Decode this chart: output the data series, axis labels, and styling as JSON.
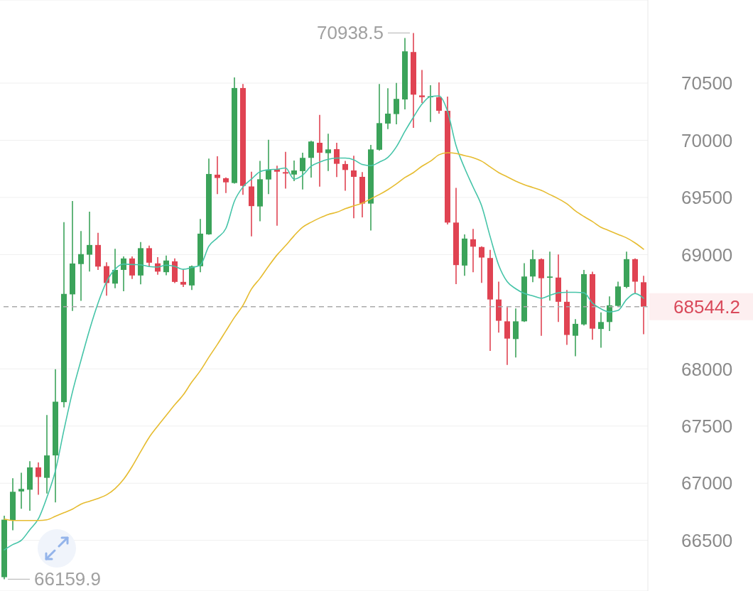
{
  "chart_data": {
    "type": "candlestick",
    "categories": [
      null,
      null,
      null,
      null,
      null,
      null,
      null,
      null,
      null,
      null,
      null,
      null,
      null,
      null,
      null,
      null,
      null,
      null,
      null,
      null,
      null,
      null,
      null,
      null,
      null,
      null,
      null,
      null,
      null,
      null,
      null,
      null,
      null,
      null,
      null,
      null,
      null,
      null,
      null,
      null,
      null,
      null,
      null,
      null,
      null,
      null,
      null,
      null,
      null,
      null,
      null,
      null,
      null,
      null,
      null,
      null,
      null,
      null,
      null,
      null,
      null,
      null,
      null,
      null,
      null,
      null,
      null,
      null,
      null,
      null,
      null,
      null,
      null,
      null,
      null,
      null
    ],
    "ohlc": [
      [
        66178,
        66715,
        66159.9,
        66681
      ],
      [
        66677,
        67043,
        66588,
        66925
      ],
      [
        66928,
        67092,
        66777,
        66950
      ],
      [
        66943,
        67193,
        66759,
        67138
      ],
      [
        67138,
        67181,
        66899,
        67054
      ],
      [
        67047,
        67597,
        66910,
        67243
      ],
      [
        67243,
        67997,
        66832,
        67713
      ],
      [
        67709,
        69283,
        67664,
        68656
      ],
      [
        68652,
        69468,
        68507,
        68922
      ],
      [
        68917,
        69206,
        68596,
        69004
      ],
      [
        68999,
        69376,
        68851,
        69084
      ],
      [
        69084,
        69190,
        68866,
        68895
      ],
      [
        68899,
        68933,
        68640,
        68751
      ],
      [
        68746,
        69050,
        68705,
        68866
      ],
      [
        68866,
        68984,
        68680,
        68966
      ],
      [
        68966,
        68984,
        68786,
        68817
      ],
      [
        68817,
        69110,
        68740,
        69056
      ],
      [
        69056,
        69078,
        68895,
        68929
      ],
      [
        68923,
        68978,
        68823,
        68851
      ],
      [
        68846,
        68991,
        68819,
        68948
      ],
      [
        68941,
        68966,
        68751,
        68761
      ],
      [
        68761,
        68870,
        68717,
        68737
      ],
      [
        68730,
        68905,
        68690,
        68898
      ],
      [
        68898,
        69312,
        68846,
        69183
      ],
      [
        69177,
        69840,
        69173,
        69705
      ],
      [
        69699,
        69860,
        69529,
        69670
      ],
      [
        69668,
        69675,
        69539,
        69632
      ],
      [
        69626,
        70550,
        69620,
        70457
      ],
      [
        70457,
        70492,
        69523,
        69601
      ],
      [
        69596,
        69725,
        69160,
        69424
      ],
      [
        69421,
        69819,
        69291,
        69659
      ],
      [
        69657,
        70005,
        69529,
        69742
      ],
      [
        69746,
        69777,
        69253,
        69725
      ],
      [
        69721,
        69898,
        69577,
        69709
      ],
      [
        69700,
        69823,
        69643,
        69736
      ],
      [
        69730,
        69891,
        69569,
        69846
      ],
      [
        69846,
        69995,
        69674,
        69989
      ],
      [
        69978,
        70222,
        69594,
        69891
      ],
      [
        69887,
        70057,
        69731,
        69920
      ],
      [
        69922,
        69978,
        69678,
        69794
      ],
      [
        69792,
        69819,
        69559,
        69740
      ],
      [
        69736,
        69864,
        69317,
        69680
      ],
      [
        69680,
        69721,
        69326,
        69446
      ],
      [
        69446,
        69960,
        69211,
        69920
      ],
      [
        69917,
        70492,
        69910,
        70150
      ],
      [
        70146,
        70455,
        70098,
        70233
      ],
      [
        70229,
        70502,
        70140,
        70362
      ],
      [
        70357,
        70895,
        70270,
        70778
      ],
      [
        70772,
        70938.5,
        70109,
        70399
      ],
      [
        70392,
        70615,
        70326,
        70377
      ],
      [
        70377,
        70481,
        70160,
        70385
      ],
      [
        70377,
        70506,
        70233,
        70258
      ],
      [
        70258,
        70382,
        69264,
        69280
      ],
      [
        69280,
        69584,
        68742,
        68908
      ],
      [
        68904,
        69177,
        68815,
        69140
      ],
      [
        69134,
        69225,
        68846,
        69069
      ],
      [
        69066,
        69072,
        68752,
        68974
      ],
      [
        68970,
        69042,
        68158,
        68607
      ],
      [
        68607,
        68763,
        68318,
        68421
      ],
      [
        68416,
        68541,
        68034,
        68265
      ],
      [
        68261,
        68529,
        68100,
        68416
      ],
      [
        68416,
        68924,
        68410,
        68808
      ],
      [
        68808,
        69042,
        68758,
        68960
      ],
      [
        68960,
        68966,
        68290,
        68793
      ],
      [
        68797,
        69026,
        68597,
        68808
      ],
      [
        68799,
        69001,
        68410,
        68587
      ],
      [
        68587,
        68690,
        68210,
        68297
      ],
      [
        68290,
        68435,
        68110,
        68394
      ],
      [
        68389,
        68866,
        68379,
        68829
      ],
      [
        68829,
        68850,
        68255,
        68352
      ],
      [
        68349,
        68494,
        68186,
        68410
      ],
      [
        68410,
        68634,
        68332,
        68556
      ],
      [
        68551,
        68763,
        68545,
        68721
      ],
      [
        68717,
        69026,
        68705,
        68960
      ],
      [
        68960,
        68966,
        68659,
        68763
      ],
      [
        68758,
        68814,
        68303,
        68544.2
      ]
    ],
    "colors": [
      "#3ba35a",
      "#3ba35a",
      "#3ba35a",
      "#3ba35a",
      "#e04352",
      "#3ba35a",
      "#3ba35a",
      "#3ba35a",
      "#3ba35a",
      "#3ba35a",
      "#3ba35a",
      "#e04352",
      "#e04352",
      "#3ba35a",
      "#3ba35a",
      "#e04352",
      "#3ba35a",
      "#e04352",
      "#e04352",
      "#3ba35a",
      "#e04352",
      "#e04352",
      "#3ba35a",
      "#3ba35a",
      "#3ba35a",
      "#e04352",
      "#e04352",
      "#3ba35a",
      "#e04352",
      "#e04352",
      "#3ba35a",
      "#3ba35a",
      "#e04352",
      "#e04352",
      "#3ba35a",
      "#3ba35a",
      "#3ba35a",
      "#e04352",
      "#3ba35a",
      "#e04352",
      "#e04352",
      "#e04352",
      "#e04352",
      "#3ba35a",
      "#3ba35a",
      "#3ba35a",
      "#3ba35a",
      "#3ba35a",
      "#e04352",
      "#e04352",
      "#3ba35a",
      "#e04352",
      "#e04352",
      "#e04352",
      "#3ba35a",
      "#e04352",
      "#e04352",
      "#e04352",
      "#e04352",
      "#e04352",
      "#3ba35a",
      "#3ba35a",
      "#3ba35a",
      "#e04352",
      "#3ba35a",
      "#e04352",
      "#e04352",
      "#3ba35a",
      "#3ba35a",
      "#e04352",
      "#3ba35a",
      "#3ba35a",
      "#3ba35a",
      "#3ba35a",
      "#e04352",
      "#e04352"
    ],
    "series": [
      {
        "type": "line",
        "color": "#45c4a8",
        "values": [
          66417,
          66463,
          66500,
          66593,
          66688,
          66876,
          67109,
          67465,
          67798,
          68075,
          68341,
          68575,
          68762,
          68873,
          68917,
          68913,
          68911,
          68895,
          68891,
          68908,
          68897,
          68871,
          68887,
          68908,
          69073,
          69146,
          69229,
          69467,
          69591,
          69660,
          69725,
          69742,
          69747,
          69757,
          69660,
          69694,
          69773,
          69809,
          69834,
          69844,
          69844,
          69829,
          69788,
          69778,
          69809,
          69850,
          69943,
          70078,
          70202,
          70316,
          70382,
          70388,
          70253,
          69953,
          69757,
          69591,
          69426,
          69157,
          68908,
          68763,
          68701,
          68660,
          68639,
          68618,
          68643,
          68666,
          68670,
          68670,
          68666,
          68576,
          68525,
          68498,
          68511,
          68607,
          68660,
          68618
        ]
      },
      {
        "type": "line",
        "color": "#e6bc30",
        "values": [
          66686,
          66674,
          66674,
          66674,
          66674,
          66680,
          66711,
          66742,
          66773,
          66817,
          66842,
          66866,
          66898,
          66953,
          67034,
          67146,
          67276,
          67401,
          67500,
          67593,
          67686,
          67773,
          67885,
          67984,
          68102,
          68214,
          68332,
          68450,
          68556,
          68699,
          68792,
          68898,
          68997,
          69078,
          69165,
          69239,
          69283,
          69320,
          69351,
          69370,
          69401,
          69426,
          69450,
          69488,
          69525,
          69568,
          69618,
          69674,
          69717,
          69773,
          69817,
          69873,
          69891,
          69885,
          69866,
          69848,
          69817,
          69767,
          69717,
          69680,
          69643,
          69612,
          69587,
          69562,
          69525,
          69488,
          69444,
          69382,
          69333,
          69289,
          69239,
          69208,
          69177,
          69146,
          69102,
          69047
        ]
      }
    ],
    "ylim": [
      66057,
      71227
    ],
    "yticks": [
      66500,
      67000,
      67500,
      68000,
      69000,
      69500,
      70000,
      70500
    ],
    "grid": "y",
    "tick_labels": "y",
    "marker": "none",
    "line_style": "solid",
    "ref_lines": [
      {
        "axis": "y",
        "value": 68544.2,
        "label": "68544.2",
        "color": "#aaaaaa",
        "line_style": "dashed"
      }
    ],
    "annotations": [
      "70938.5",
      "66159.9"
    ]
  }
}
